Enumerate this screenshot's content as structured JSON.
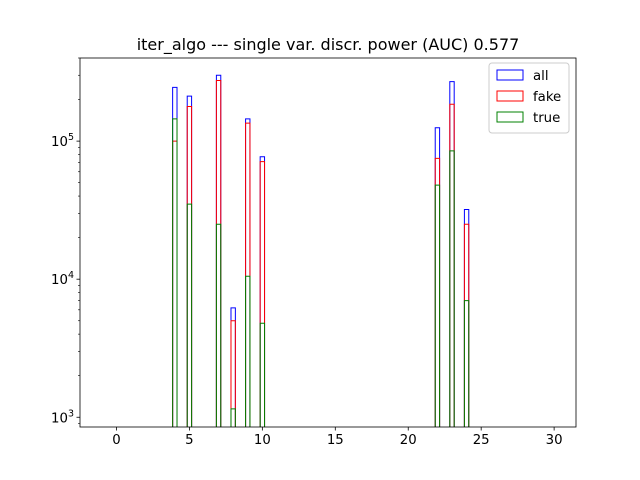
{
  "chart_data": {
    "type": "bar",
    "title": "iter_algo --- single var. discr. power (AUC) 0.577",
    "xlabel": "",
    "ylabel": "",
    "xlim": [
      -2.5,
      31.5
    ],
    "ylim": [
      850,
      400000
    ],
    "yscale": "log",
    "x_ticks": [
      0,
      5,
      10,
      15,
      20,
      25,
      30
    ],
    "x_tick_labels": [
      "0",
      "5",
      "10",
      "15",
      "20",
      "25",
      "30"
    ],
    "y_ticks": [
      1000,
      10000,
      100000
    ],
    "y_tick_labels": [
      {
        "base": "10",
        "exp": "3"
      },
      {
        "base": "10",
        "exp": "4"
      },
      {
        "base": "10",
        "exp": "5"
      }
    ],
    "bin_width": 0.3,
    "x": [
      4,
      5,
      7,
      8,
      9,
      10,
      22,
      23,
      24
    ],
    "series": [
      {
        "name": "all",
        "color": "#0000ff",
        "values": [
          245000,
          212000,
          300000,
          6200,
          145000,
          77000,
          125000,
          270000,
          32000
        ]
      },
      {
        "name": "fake",
        "color": "#ff0000",
        "values": [
          100000,
          178000,
          275000,
          5000,
          135000,
          71000,
          75000,
          185000,
          25000
        ]
      },
      {
        "name": "true",
        "color": "#008000",
        "values": [
          145000,
          35000,
          25000,
          1150,
          10500,
          4800,
          48000,
          85000,
          7000
        ]
      }
    ],
    "legend_position": "top-right",
    "grid": false
  }
}
